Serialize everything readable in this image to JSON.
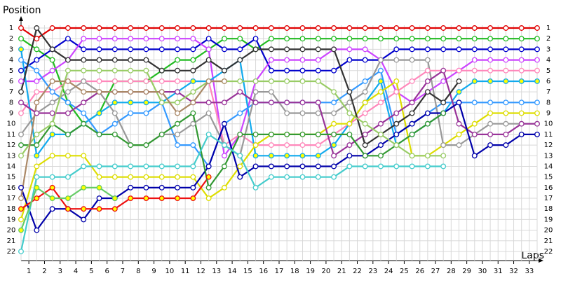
{
  "chart_data": {
    "type": "lap-chart",
    "y_title": "Position",
    "x_title": "Laps",
    "grid": true,
    "y_inverted": true,
    "marker_fill": "#ffffff",
    "x": [
      0,
      1,
      2,
      3,
      4,
      5,
      6,
      7,
      8,
      9,
      10,
      11,
      12,
      13,
      14,
      15,
      16,
      17,
      18,
      19,
      20,
      21,
      22,
      23,
      24,
      25,
      26,
      27,
      28,
      29,
      30,
      31,
      32,
      33
    ],
    "xlim": [
      0,
      33
    ],
    "ylim": [
      1,
      22
    ],
    "yticks": [
      1,
      2,
      3,
      4,
      5,
      6,
      7,
      8,
      9,
      10,
      11,
      12,
      13,
      14,
      15,
      16,
      17,
      18,
      19,
      20,
      21,
      22
    ],
    "xticks": [
      {
        "value": 0.5,
        "label": "1"
      },
      {
        "value": 1.5,
        "label": "2"
      },
      {
        "value": 2.5,
        "label": "3"
      },
      {
        "value": 3.5,
        "label": "4"
      },
      {
        "value": 4.5,
        "label": "5"
      },
      {
        "value": 5.5,
        "label": "6"
      },
      {
        "value": 6.5,
        "label": "7"
      },
      {
        "value": 7.5,
        "label": "8"
      },
      {
        "value": 8.5,
        "label": "9"
      },
      {
        "value": 9.5,
        "label": "10"
      },
      {
        "value": 10.5,
        "label": "11"
      },
      {
        "value": 11.5,
        "label": "12"
      },
      {
        "value": 12.5,
        "label": "13"
      },
      {
        "value": 13.5,
        "label": "14"
      },
      {
        "value": 14.5,
        "label": "15"
      },
      {
        "value": 15.5,
        "label": "16"
      },
      {
        "value": 16.5,
        "label": "17"
      },
      {
        "value": 17.5,
        "label": "18"
      },
      {
        "value": 18.5,
        "label": "19"
      },
      {
        "value": 19.5,
        "label": "20"
      },
      {
        "value": 20.5,
        "label": "21"
      },
      {
        "value": 21.5,
        "label": "22"
      },
      {
        "value": 22.5,
        "label": "23"
      },
      {
        "value": 23.5,
        "label": "24"
      },
      {
        "value": 24.5,
        "label": "25"
      },
      {
        "value": 25.5,
        "label": "26"
      },
      {
        "value": 26.5,
        "label": "27"
      },
      {
        "value": 27.5,
        "label": "28"
      },
      {
        "value": 28.5,
        "label": "29"
      },
      {
        "value": 29.5,
        "label": "30"
      },
      {
        "value": 30.5,
        "label": "31"
      },
      {
        "value": 31.5,
        "label": "32"
      },
      {
        "value": 32.5,
        "label": "33"
      }
    ],
    "series": [
      {
        "color": "#e00000",
        "values": [
          1,
          2,
          1,
          1,
          1,
          1,
          1,
          1,
          1,
          1,
          1,
          1,
          1,
          1,
          1,
          1,
          1,
          1,
          1,
          1,
          1,
          1,
          1,
          1,
          1,
          1,
          1,
          1,
          1,
          1,
          1,
          1,
          1,
          1
        ]
      },
      {
        "color": "#22bb22",
        "values": [
          2,
          3,
          4,
          8,
          10,
          9,
          6,
          6,
          6,
          5,
          4,
          4,
          3,
          2,
          2,
          3,
          2,
          2,
          2,
          2,
          2,
          2,
          2,
          2,
          2,
          2,
          2,
          2,
          2,
          2,
          2,
          2,
          2,
          2
        ]
      },
      {
        "color": "#0000cc",
        "values": [
          5,
          4,
          3,
          2,
          3,
          3,
          3,
          3,
          3,
          3,
          3,
          3,
          2,
          3,
          3,
          2,
          5,
          5,
          5,
          5,
          5,
          4,
          4,
          4,
          3,
          3,
          3,
          3,
          3,
          3,
          3,
          3,
          3,
          3
        ]
      },
      {
        "color": "#cc44ff",
        "values": [
          6,
          6,
          5,
          4,
          2,
          2,
          2,
          2,
          2,
          2,
          2,
          2,
          3,
          13,
          11,
          6,
          4,
          4,
          4,
          4,
          3,
          3,
          3,
          4,
          7,
          8,
          7,
          6,
          5,
          4,
          4,
          4,
          4,
          4
        ]
      },
      {
        "color": "#ff88bb",
        "values": [
          9,
          7,
          7,
          6,
          6,
          6,
          6,
          6,
          6,
          6,
          6,
          6,
          6,
          12,
          11,
          12,
          12,
          12,
          12,
          12,
          11,
          10,
          9,
          8,
          7,
          6,
          5,
          5,
          5,
          5,
          5,
          5,
          5,
          5
        ]
      },
      {
        "color": "#11aaee",
        "marker": "#ffff00",
        "values": [
          3,
          13,
          11,
          11,
          10,
          9,
          8,
          8,
          8,
          8,
          7,
          6,
          6,
          5,
          4,
          13,
          13,
          13,
          13,
          13,
          12,
          10,
          8,
          6,
          12,
          11,
          10,
          9,
          7,
          6,
          6,
          6,
          6,
          6
        ]
      },
      {
        "color": "#3399ff",
        "values": [
          4,
          5,
          7,
          8,
          9,
          11,
          10,
          9,
          9,
          8,
          12,
          12,
          14,
          10,
          9,
          8,
          8,
          8,
          8,
          8,
          8,
          7,
          6,
          5,
          11,
          10,
          9,
          8,
          8,
          8,
          8,
          8,
          8,
          8
        ]
      },
      {
        "color": "#dddd00",
        "values": [
          19,
          14,
          13,
          13,
          13,
          15,
          15,
          15,
          15,
          15,
          15,
          15,
          17,
          16,
          14,
          12,
          11,
          11,
          11,
          11,
          10,
          10,
          8,
          7,
          6,
          13,
          13,
          12,
          11,
          10,
          9,
          9,
          9,
          9
        ]
      },
      {
        "color": "#999999",
        "values": [
          11,
          9,
          8,
          7,
          6,
          7,
          9,
          12,
          12,
          11,
          11,
          10,
          9,
          12,
          13,
          7,
          7,
          9,
          9,
          9,
          9,
          8,
          7,
          4,
          4,
          4,
          4,
          12,
          12,
          11,
          10,
          10,
          10,
          10
        ]
      },
      {
        "color": "#993399",
        "values": [
          8,
          9,
          9,
          9,
          8,
          7,
          7,
          7,
          7,
          7,
          7,
          8,
          8,
          8,
          7,
          8,
          8,
          8,
          8,
          8,
          13,
          12,
          11,
          10,
          9,
          8,
          6,
          5,
          10,
          11,
          11,
          11,
          10,
          10
        ]
      },
      {
        "color": "#0000aa",
        "values": [
          16,
          20,
          18,
          18,
          19,
          17,
          17,
          16,
          16,
          16,
          16,
          16,
          14,
          10,
          15,
          14,
          14,
          14,
          14,
          14,
          14,
          13,
          13,
          12,
          11,
          10,
          9,
          9,
          8,
          13,
          12,
          12,
          11,
          11
        ]
      },
      {
        "color": "#333333",
        "values": [
          7,
          1,
          3,
          4,
          4,
          4,
          4,
          4,
          4,
          5,
          5,
          5,
          4,
          5,
          4,
          3,
          3,
          3,
          3,
          3,
          3,
          7,
          12,
          11,
          10,
          9,
          7,
          8,
          6,
          null,
          null,
          null,
          null,
          null
        ]
      },
      {
        "color": "#ee1111",
        "marker": "#ffff00",
        "values": [
          18,
          17,
          16,
          18,
          18,
          18,
          18,
          17,
          17,
          17,
          17,
          17,
          15,
          null,
          null,
          null,
          null,
          null,
          null,
          null,
          null,
          null,
          null,
          null,
          null,
          null,
          null,
          null,
          null,
          null,
          null,
          null,
          null,
          null
        ]
      },
      {
        "color": "#339933",
        "values": [
          12,
          12,
          10,
          11,
          10,
          11,
          11,
          12,
          12,
          11,
          10,
          9,
          16,
          14,
          11,
          11,
          11,
          11,
          11,
          11,
          11,
          11,
          13,
          13,
          12,
          11,
          10,
          9,
          null,
          null,
          null,
          null,
          null,
          null
        ]
      },
      {
        "color": "#44cccc",
        "values": [
          22,
          15,
          15,
          15,
          14,
          14,
          14,
          14,
          14,
          14,
          14,
          14,
          11,
          12,
          13,
          16,
          15,
          15,
          15,
          15,
          15,
          14,
          14,
          14,
          14,
          14,
          14,
          14,
          null,
          null,
          null,
          null,
          null,
          null
        ]
      },
      {
        "color": "#99cc66",
        "values": [
          13,
          11,
          10,
          5,
          5,
          5,
          5,
          5,
          5,
          8,
          8,
          7,
          6,
          6,
          6,
          6,
          6,
          6,
          6,
          6,
          7,
          9,
          10,
          11,
          12,
          13,
          13,
          13,
          null,
          null,
          null,
          null,
          null,
          null
        ]
      },
      {
        "color": "#aa8866",
        "values": [
          17,
          8,
          6,
          6,
          7,
          7,
          7,
          7,
          7,
          7,
          9,
          8,
          6,
          6,
          null,
          null,
          null,
          null,
          null,
          null,
          null,
          null,
          null,
          null,
          null,
          null,
          null,
          null,
          null,
          null,
          null,
          null,
          null,
          null
        ]
      },
      {
        "color": "#66cc66",
        "marker": "#ffff00",
        "values": [
          20,
          16,
          17,
          17,
          16,
          16,
          17,
          null,
          null,
          null,
          null,
          null,
          null,
          null,
          null,
          null,
          null,
          null,
          null,
          null,
          null,
          null,
          null,
          null,
          null,
          null,
          null,
          null,
          null,
          null,
          null,
          null,
          null,
          null
        ]
      }
    ]
  }
}
